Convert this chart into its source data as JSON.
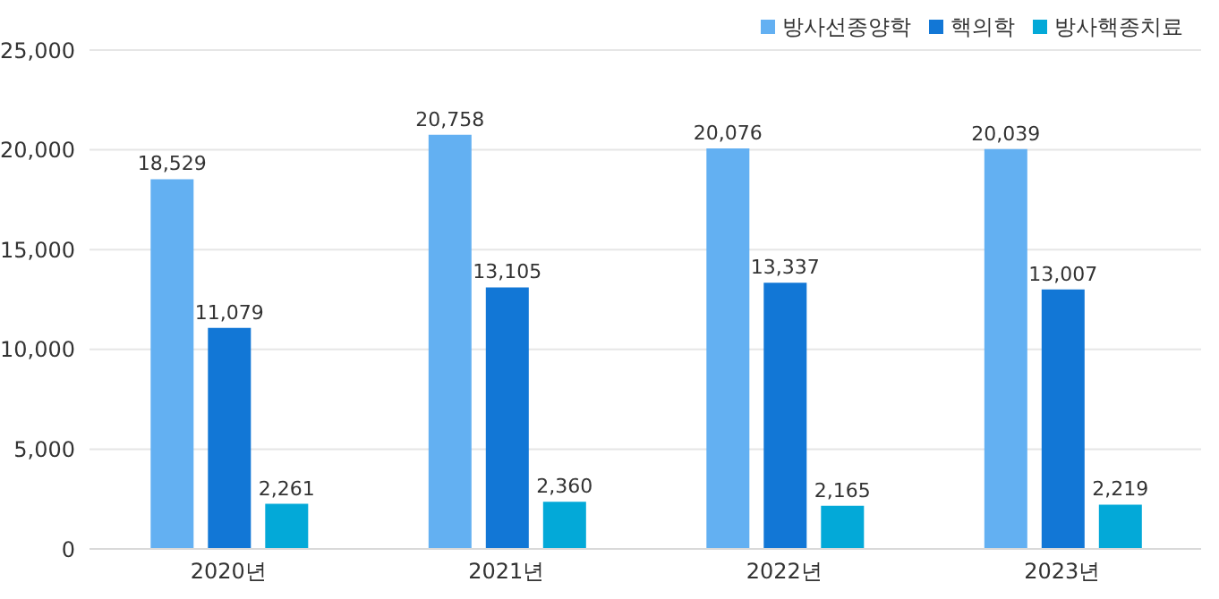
{
  "chart_data": {
    "type": "bar",
    "categories": [
      "2020년",
      "2021년",
      "2022년",
      "2023년"
    ],
    "series": [
      {
        "name": "방사선종양학",
        "color": "#63b0f2",
        "values": [
          18529,
          20758,
          20076,
          20039
        ],
        "value_labels": [
          "18,529",
          "20,758",
          "20,076",
          "20,039"
        ]
      },
      {
        "name": "핵의학",
        "color": "#1277d6",
        "values": [
          11079,
          13105,
          13337,
          13007
        ],
        "value_labels": [
          "11,079",
          "13,105",
          "13,337",
          "13,007"
        ]
      },
      {
        "name": "방사핵종치료",
        "color": "#03a9d8",
        "values": [
          2261,
          2360,
          2165,
          2219
        ],
        "value_labels": [
          "2,261",
          "2,360",
          "2,165",
          "2,219"
        ]
      }
    ],
    "ylim": [
      0,
      25000
    ],
    "yticks": [
      {
        "value": 0,
        "label": "0"
      },
      {
        "value": 5000,
        "label": "5,000"
      },
      {
        "value": 10000,
        "label": "10,000"
      },
      {
        "value": 15000,
        "label": "15,000"
      },
      {
        "value": 20000,
        "label": "20,000"
      },
      {
        "value": 25000,
        "label": "25,000"
      }
    ],
    "grid": "y",
    "legend": "top right"
  }
}
